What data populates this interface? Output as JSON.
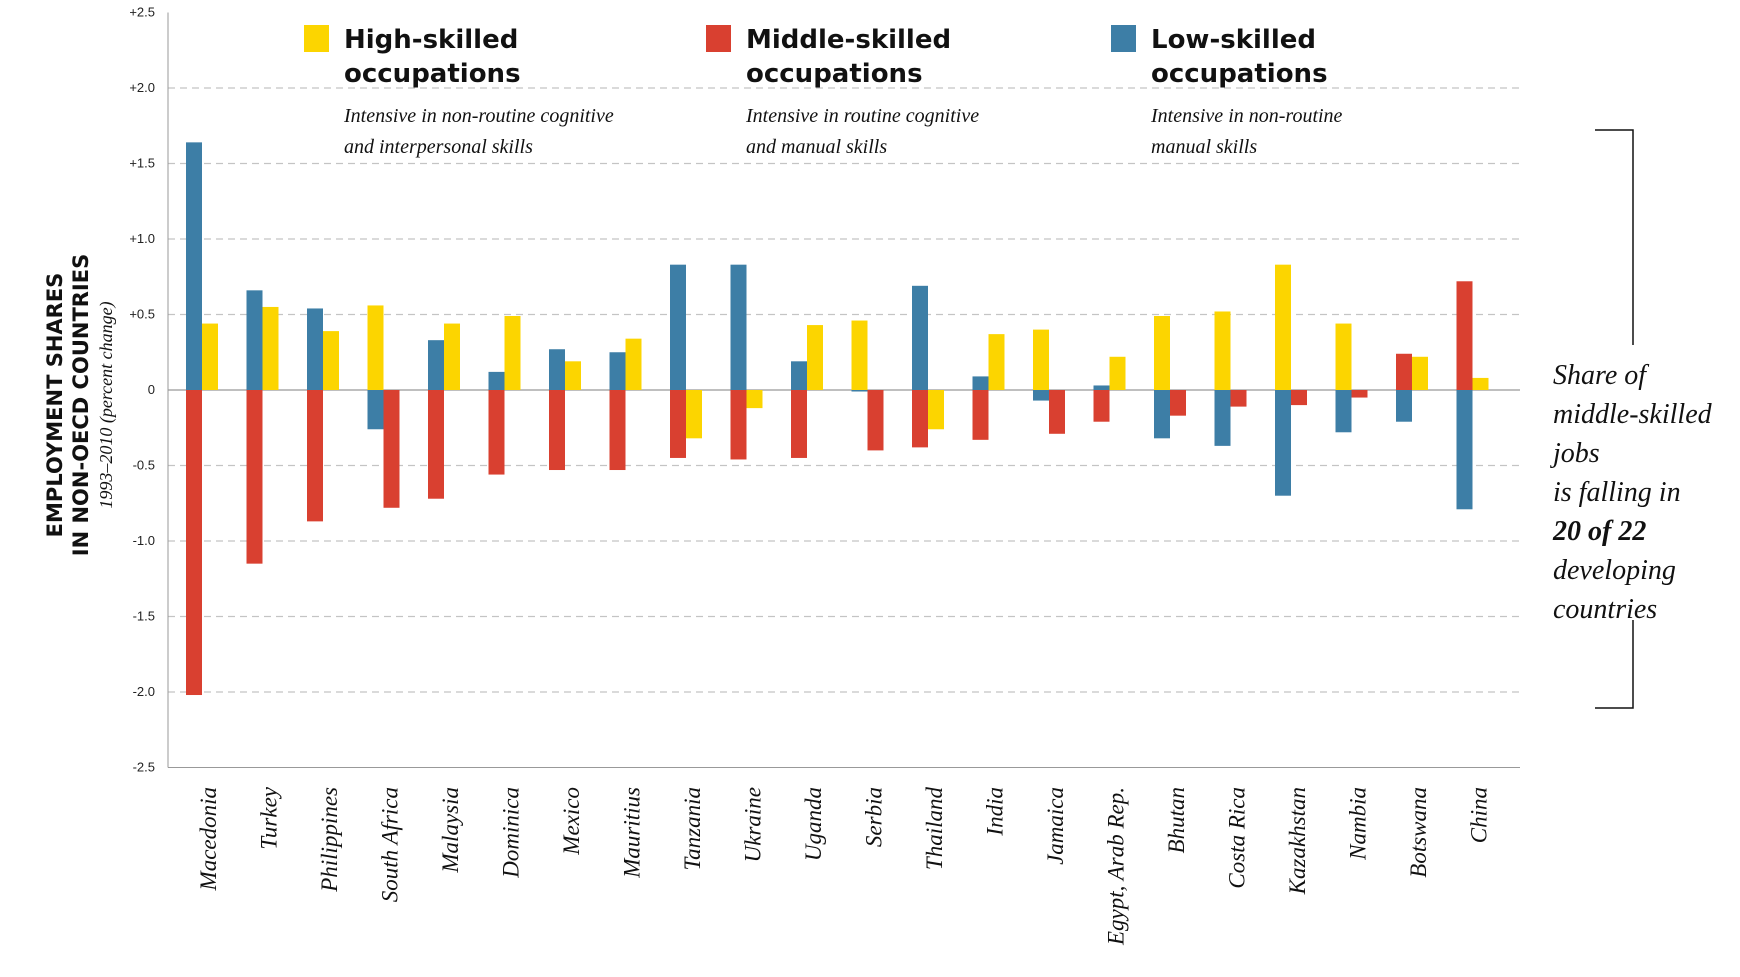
{
  "chart_data": {
    "type": "bar",
    "ylabel": [
      "EMPLOYMENT SHARES",
      "IN NON-OECD COUNTRIES"
    ],
    "ylabel_sub": "1993–2010 (percent change)",
    "ylim": [
      -2.5,
      2.5
    ],
    "y_ticks": [
      {
        "value": 2.5,
        "label": "+2.5"
      },
      {
        "value": 2.0,
        "label": "+2.0"
      },
      {
        "value": 1.5,
        "label": "+1.5"
      },
      {
        "value": 1.0,
        "label": "+1.0"
      },
      {
        "value": 0.5,
        "label": "+0.5"
      },
      {
        "value": 0,
        "label": "0"
      },
      {
        "value": -0.5,
        "label": "-0.5"
      },
      {
        "value": -1.0,
        "label": "-1.0"
      },
      {
        "value": -1.5,
        "label": "-1.5"
      },
      {
        "value": -2.0,
        "label": "-2.0"
      },
      {
        "value": -2.5,
        "label": "-2.5"
      }
    ],
    "grid": "horizontal dashed",
    "legend_position": "top",
    "categories": [
      "Macedonia",
      "Turkey",
      "Philippines",
      "South Africa",
      "Malaysia",
      "Dominica",
      "Mexico",
      "Mauritius",
      "Tanzania",
      "Ukraine",
      "Uganda",
      "Serbia",
      "Thailand",
      "India",
      "Jamaica",
      "Egypt, Arab Rep.",
      "Bhutan",
      "Costa Rica",
      "Kazakhstan",
      "Nambia",
      "Botswana",
      "China"
    ],
    "series": [
      {
        "name": "Low-skilled occupations",
        "description": [
          "Intensive in non-routine",
          "manual skills"
        ],
        "color": "#3d7ea6",
        "values": [
          1.64,
          0.66,
          0.54,
          -0.26,
          0.33,
          0.12,
          0.27,
          0.25,
          0.83,
          0.83,
          0.19,
          -0.01,
          0.69,
          0.09,
          -0.07,
          0.03,
          -0.32,
          -0.37,
          -0.7,
          -0.28,
          -0.21,
          -0.79
        ]
      },
      {
        "name": "Middle-skilled occupations",
        "description": [
          "Intensive in routine cognitive",
          "and manual skills"
        ],
        "color": "#d94030",
        "values": [
          -2.02,
          -1.15,
          -0.87,
          -0.78,
          -0.72,
          -0.56,
          -0.53,
          -0.53,
          -0.45,
          -0.46,
          -0.45,
          -0.4,
          -0.38,
          -0.33,
          -0.29,
          -0.21,
          -0.17,
          -0.11,
          -0.1,
          -0.05,
          0.24,
          0.72
        ]
      },
      {
        "name": "High-skilled occupations",
        "description": [
          "Intensive in non-routine cognitive",
          "and interpersonal skills"
        ],
        "color": "#fcd500",
        "values": [
          0.44,
          0.55,
          0.39,
          0.56,
          0.44,
          0.49,
          0.19,
          0.34,
          -0.32,
          -0.12,
          0.43,
          0.46,
          -0.26,
          0.37,
          0.4,
          0.22,
          0.49,
          0.52,
          0.83,
          0.44,
          0.22,
          0.08
        ]
      }
    ],
    "legend_order": [
      2,
      1,
      0
    ],
    "annotation": {
      "lines": [
        "Share of",
        "middle-skilled",
        "jobs",
        "is falling in",
        "20 of 22",
        "developing",
        "countries"
      ],
      "bold_line": "20 of 22"
    }
  }
}
